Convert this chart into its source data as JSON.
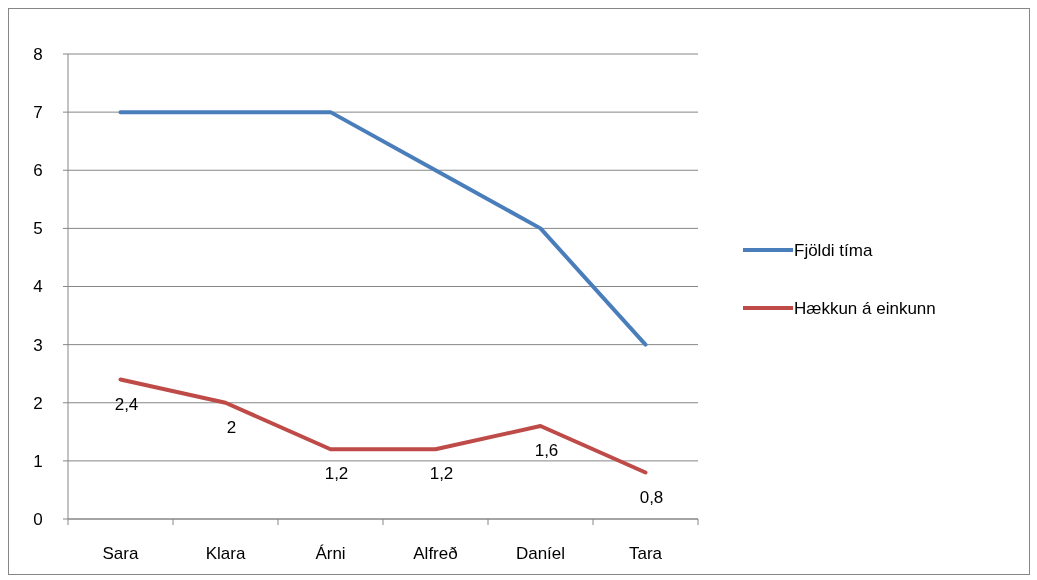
{
  "chart_data": {
    "type": "line",
    "categories": [
      "Sara",
      "Klara",
      "Árni",
      "Alfreð",
      "Daníel",
      "Tara"
    ],
    "series": [
      {
        "name": "Fjöldi tíma",
        "color": "#4a7ebb",
        "values": [
          7,
          7,
          7,
          6,
          5,
          3
        ]
      },
      {
        "name": "Hækkun á einkunn",
        "color": "#be4b48",
        "values": [
          2.4,
          2,
          1.2,
          1.2,
          1.6,
          0.8
        ],
        "value_labels": [
          "2,4",
          "2",
          "1,2",
          "1,2",
          "1,6",
          "0,8"
        ]
      }
    ],
    "ylim": [
      0,
      8
    ],
    "yticks": [
      0,
      1,
      2,
      3,
      4,
      5,
      6,
      7,
      8
    ],
    "grid": "y",
    "legend": "right",
    "marker": "none",
    "line_style": "solid"
  }
}
